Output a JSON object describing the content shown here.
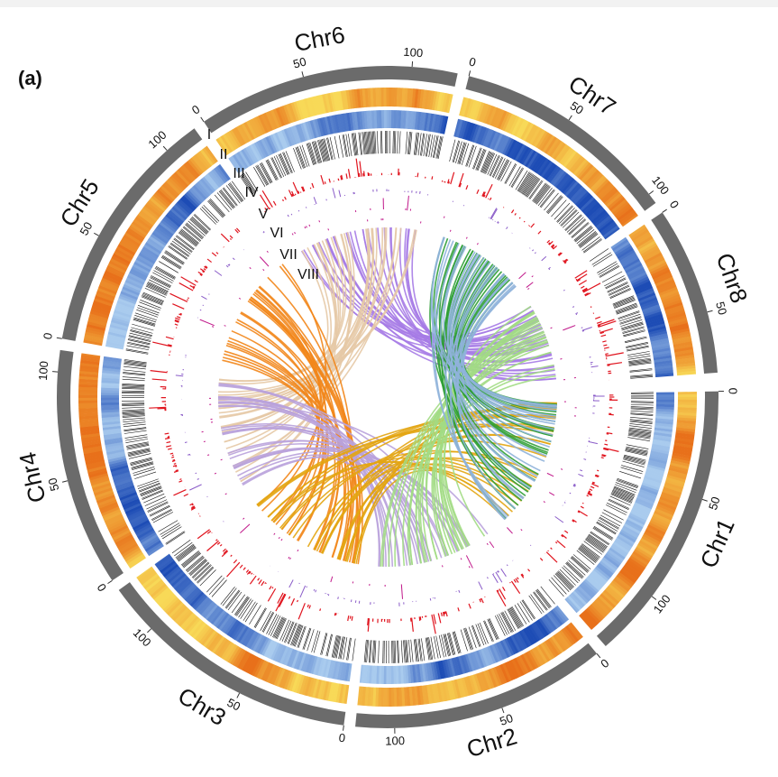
{
  "chart_data": {
    "type": "circos",
    "panel_label": "(a)",
    "chromosomes": [
      {
        "name": "Chr1",
        "length": 131,
        "ticks": [
          0,
          50,
          100
        ]
      },
      {
        "name": "Chr2",
        "length": 118,
        "ticks": [
          0,
          50,
          100
        ]
      },
      {
        "name": "Chr3",
        "length": 123,
        "ticks": [
          0,
          50,
          100
        ]
      },
      {
        "name": "Chr4",
        "length": 110,
        "ticks": [
          0,
          50,
          100
        ]
      },
      {
        "name": "Chr5",
        "length": 116,
        "ticks": [
          0,
          50,
          100
        ]
      },
      {
        "name": "Chr6",
        "length": 121,
        "ticks": [
          0,
          50,
          100
        ]
      },
      {
        "name": "Chr7",
        "length": 105,
        "ticks": [
          0,
          50,
          100
        ]
      },
      {
        "name": "Chr8",
        "length": 78,
        "ticks": [
          0,
          50
        ]
      }
    ],
    "track_labels": [
      "I",
      "II",
      "III",
      "IV",
      "V",
      "VI",
      "VII",
      "VIII"
    ],
    "ideogram_color": "#6b6b6b",
    "track_colors": {
      "I": [
        "#f8d957",
        "#e8701a"
      ],
      "II": [
        "#a9cbee",
        "#1d4cb5"
      ],
      "III": "#111111",
      "IV": "#e0141e",
      "V": "#8a5cc8",
      "VI": "#c0188a"
    },
    "links": [
      {
        "source": "Chr6",
        "target": "Chr8",
        "color": "#a67be6"
      },
      {
        "source": "Chr6",
        "target": "Chr4",
        "color": "#e6c9a6"
      },
      {
        "source": "Chr5",
        "target": "Chr3",
        "color": "#f2861a"
      },
      {
        "source": "Chr4",
        "target": "Chr2",
        "color": "#b9a2dc"
      },
      {
        "source": "Chr3",
        "target": "Chr1",
        "color": "#e3a512"
      },
      {
        "source": "Chr2",
        "target": "Chr8",
        "color": "#a2dc84"
      },
      {
        "source": "Chr1",
        "target": "Chr7",
        "color": "#2e9e35"
      },
      {
        "source": "Chr7",
        "target": "Chr1",
        "color": "#8fb2da"
      }
    ]
  }
}
